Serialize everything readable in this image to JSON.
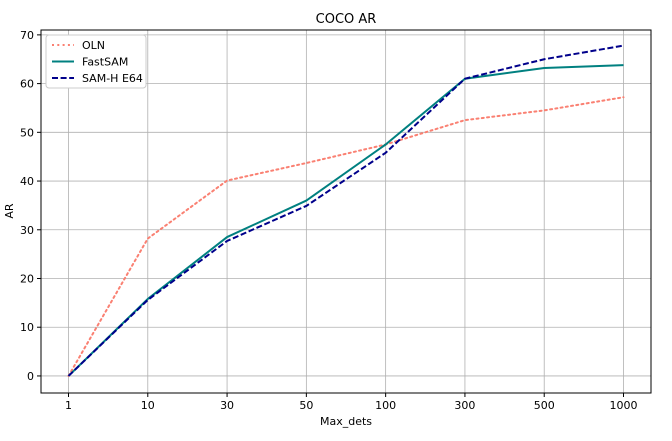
{
  "chart_data": {
    "type": "line",
    "title": "COCO AR",
    "xlabel": "Max_dets",
    "ylabel": "AR",
    "categories": [
      "1",
      "10",
      "30",
      "50",
      "100",
      "300",
      "500",
      "1000"
    ],
    "yticks": [
      0,
      10,
      20,
      30,
      40,
      50,
      60,
      70
    ],
    "ylim": [
      -3.5,
      71
    ],
    "grid": true,
    "legend_position": "top-left",
    "series": [
      {
        "name": "OLN",
        "values": [
          0,
          28.2,
          40.1,
          43.7,
          47.5,
          52.5,
          54.5,
          57.2
        ],
        "color": "#fa8072",
        "style": "dotted"
      },
      {
        "name": "FastSAM",
        "values": [
          0,
          15.8,
          28.5,
          36.0,
          47.5,
          61.0,
          63.2,
          63.8
        ],
        "color": "#008080",
        "style": "solid"
      },
      {
        "name": "SAM-H E64",
        "values": [
          0,
          15.6,
          27.7,
          34.9,
          45.8,
          61.0,
          65.0,
          67.8
        ],
        "color": "#00008b",
        "style": "dashed"
      }
    ]
  }
}
